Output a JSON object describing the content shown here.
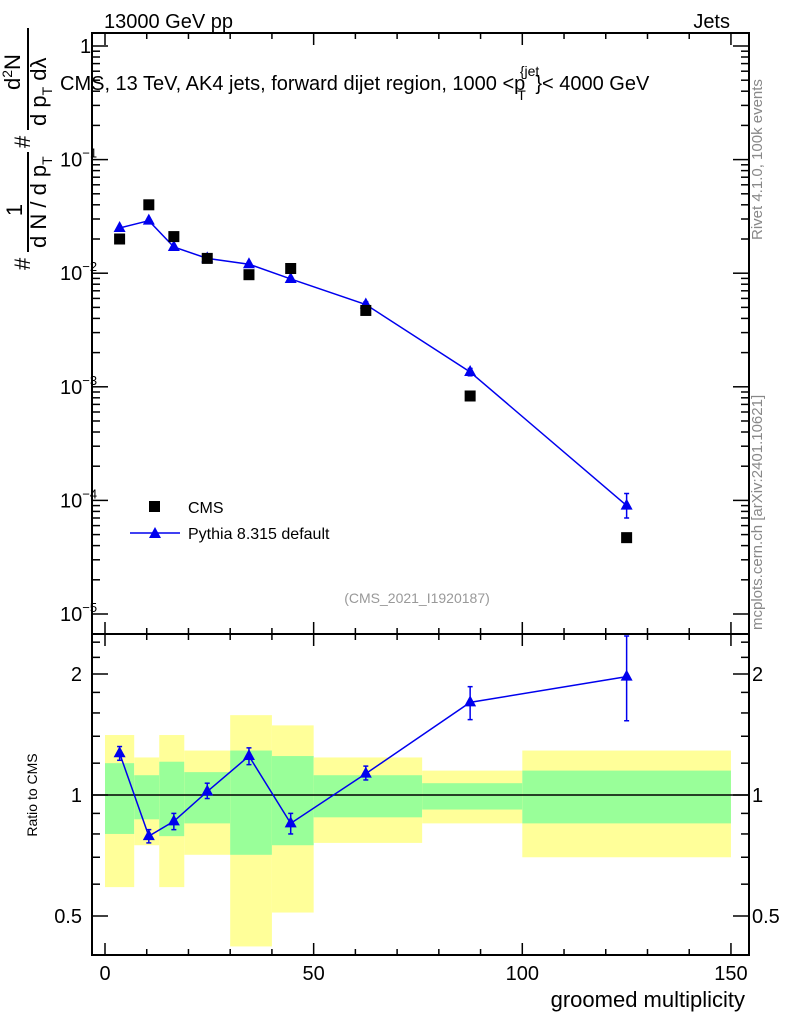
{
  "header": {
    "left": "13000 GeV pp",
    "right": "Jets"
  },
  "side_text": {
    "rivet": "Rivet 4.1.0,  100k events",
    "mcplots": "mcplots.cern.ch [arXiv:2401.10621]"
  },
  "analysis_id": "(CMS_2021_I1920187)",
  "colors": {
    "cms": "#000000",
    "pythia": "#0000ee",
    "band_inner": "#99ff99",
    "band_outer": "#ffff99"
  },
  "chart_data": [
    {
      "type": "scatter",
      "title": {
        "prefix": "CMS, 13 TeV, AK4 jets, forward dijet region, 1000 <p",
        "sub": "T",
        "sup": "{jet",
        "suffix": "}< 4000 GeV"
      },
      "ylabel": {
        "hash1": "#",
        "one": "1",
        "den1": "d N / d p",
        "den1_sub": "T",
        "hash2": "#",
        "num2": "d",
        "num2_sup": "2",
        "num2_end": "N",
        "den2": "d p",
        "den2_sub": "T",
        "den2_end": " dλ"
      },
      "yscale": "log",
      "ylim": [
        1e-05,
        1.5
      ],
      "yticks": [
        {
          "v": 1,
          "label": "1"
        },
        {
          "v": 0.1,
          "label": "10",
          "exp": "−1"
        },
        {
          "v": 0.01,
          "label": "10",
          "exp": "−2"
        },
        {
          "v": 0.001,
          "label": "10",
          "exp": "−3"
        },
        {
          "v": 0.0001,
          "label": "10",
          "exp": "−4"
        },
        {
          "v": 1e-05,
          "label": "10",
          "exp": "−5"
        }
      ],
      "xlim": [
        -3,
        155
      ],
      "legend": {
        "placement": "bottom-left",
        "entries": [
          "CMS",
          "Pythia 8.315 default"
        ]
      },
      "series": [
        {
          "name": "CMS",
          "marker": "square",
          "x": [
            3.5,
            10.5,
            16.5,
            24.5,
            34.5,
            44.5,
            62.5,
            87.5,
            125
          ],
          "y": [
            0.02,
            0.04,
            0.021,
            0.0135,
            0.0097,
            0.011,
            0.0047,
            0.00083,
            4.7e-05
          ]
        },
        {
          "name": "Pythia 8.315 default",
          "marker": "triangle",
          "x": [
            3.5,
            10.5,
            16.5,
            24.5,
            34.5,
            44.5,
            62.5,
            87.5,
            125
          ],
          "y": [
            0.025,
            0.029,
            0.017,
            0.0135,
            0.012,
            0.0089,
            0.0053,
            0.00135,
            9e-05
          ],
          "ylow": [
            0.0245,
            0.0285,
            0.0167,
            0.0132,
            0.0117,
            0.0086,
            0.005,
            0.00125,
            7e-05
          ],
          "yhigh": [
            0.0255,
            0.0295,
            0.0173,
            0.0138,
            0.0123,
            0.0092,
            0.0056,
            0.00145,
            0.000115
          ]
        }
      ]
    },
    {
      "type": "scatter",
      "ylabel": "Ratio to CMS",
      "xlabel": "groomed multiplicity",
      "yscale": "log",
      "ylim": [
        0.37,
        2.6
      ],
      "yticks": [
        {
          "v": 0.5,
          "label": "0.5"
        },
        {
          "v": 1,
          "label": "1"
        },
        {
          "v": 2,
          "label": "2"
        }
      ],
      "xticks": [
        {
          "v": 0,
          "label": "0"
        },
        {
          "v": 50,
          "label": "50"
        },
        {
          "v": 100,
          "label": "100"
        },
        {
          "v": 150,
          "label": "150"
        }
      ],
      "bands": {
        "edges": [
          0,
          7,
          13,
          19,
          30,
          40,
          50,
          76,
          100,
          150
        ],
        "outer_low": [
          0.59,
          0.75,
          0.59,
          0.71,
          0.42,
          0.51,
          0.76,
          0.85,
          0.7
        ],
        "outer_high": [
          1.41,
          1.24,
          1.41,
          1.29,
          1.58,
          1.49,
          1.24,
          1.15,
          1.29
        ],
        "inner_low": [
          0.8,
          0.87,
          0.79,
          0.85,
          0.71,
          0.75,
          0.88,
          0.92,
          0.85
        ],
        "inner_high": [
          1.2,
          1.12,
          1.21,
          1.14,
          1.29,
          1.25,
          1.12,
          1.07,
          1.15
        ]
      },
      "series": [
        {
          "name": "Pythia 8.315 default / CMS",
          "x": [
            3.5,
            10.5,
            16.5,
            24.5,
            34.5,
            44.5,
            62.5,
            87.5,
            125
          ],
          "y": [
            1.27,
            0.79,
            0.86,
            1.02,
            1.25,
            0.85,
            1.13,
            1.7,
            1.97
          ],
          "ylow": [
            1.22,
            0.76,
            0.82,
            0.98,
            1.19,
            0.8,
            1.09,
            1.54,
            1.53
          ],
          "yhigh": [
            1.32,
            0.82,
            0.9,
            1.07,
            1.31,
            0.9,
            1.18,
            1.86,
            2.6
          ]
        }
      ]
    }
  ]
}
